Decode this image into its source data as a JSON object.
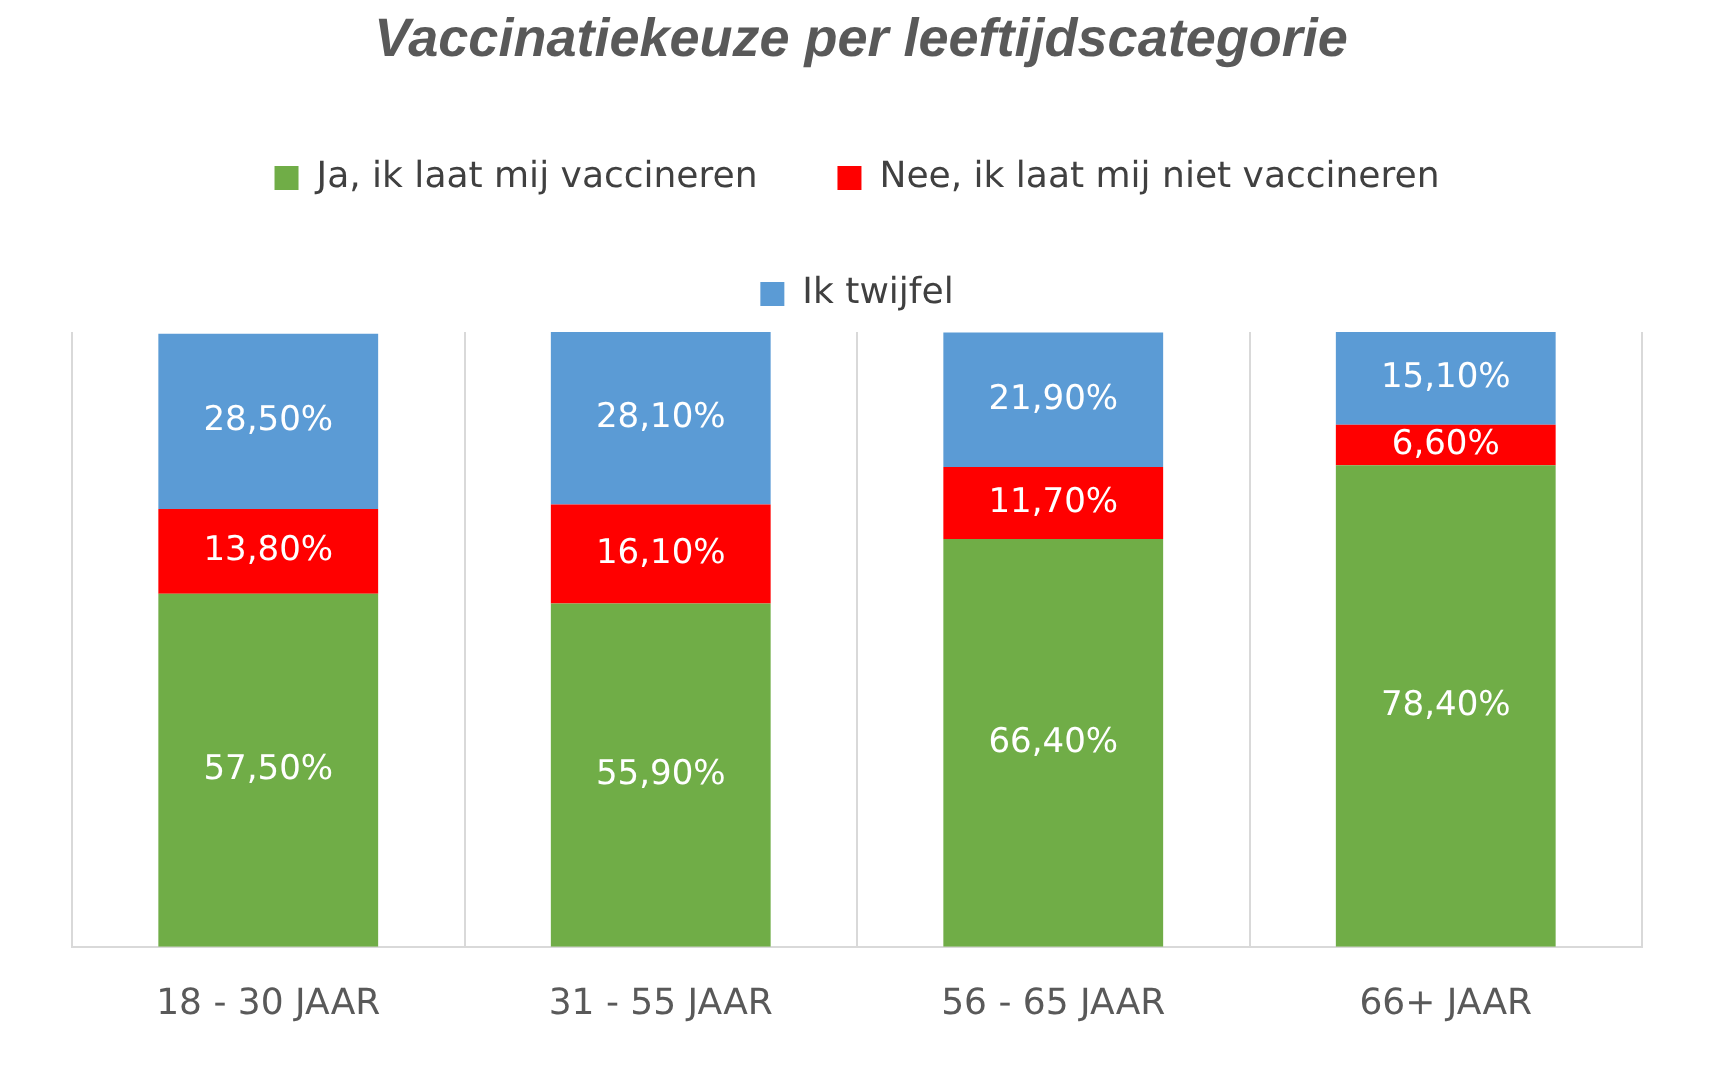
{
  "chart_data": {
    "type": "bar",
    "title": "Vaccinatiekeuze per leeftijdscategorie",
    "categories": [
      "18 - 30 JAAR",
      "31 - 55 JAAR",
      "56 - 65 JAAR",
      "66+ JAAR"
    ],
    "stacked": true,
    "grid": "x",
    "legend": "top",
    "tick_labels": "x",
    "series": [
      {
        "name": "Ja, ik laat mij vaccineren",
        "color": "#70ad47",
        "values": [
          57.5,
          55.9,
          66.4,
          78.4
        ],
        "value_labels": [
          "57,50%",
          "55,90%",
          "66,40%",
          "78,40%"
        ]
      },
      {
        "name": "Nee, ik laat mij niet vaccineren",
        "color": "#ff0000",
        "values": [
          13.8,
          16.1,
          11.7,
          6.6
        ],
        "value_labels": [
          "13,80%",
          "16,10%",
          "11,70%",
          "6,60%"
        ]
      },
      {
        "name": "Ik twijfel",
        "color": "#5b9bd5",
        "values": [
          28.5,
          28.1,
          21.9,
          15.1
        ],
        "value_labels": [
          "28,50%",
          "28,10%",
          "21,90%",
          "15,10%"
        ]
      }
    ]
  }
}
